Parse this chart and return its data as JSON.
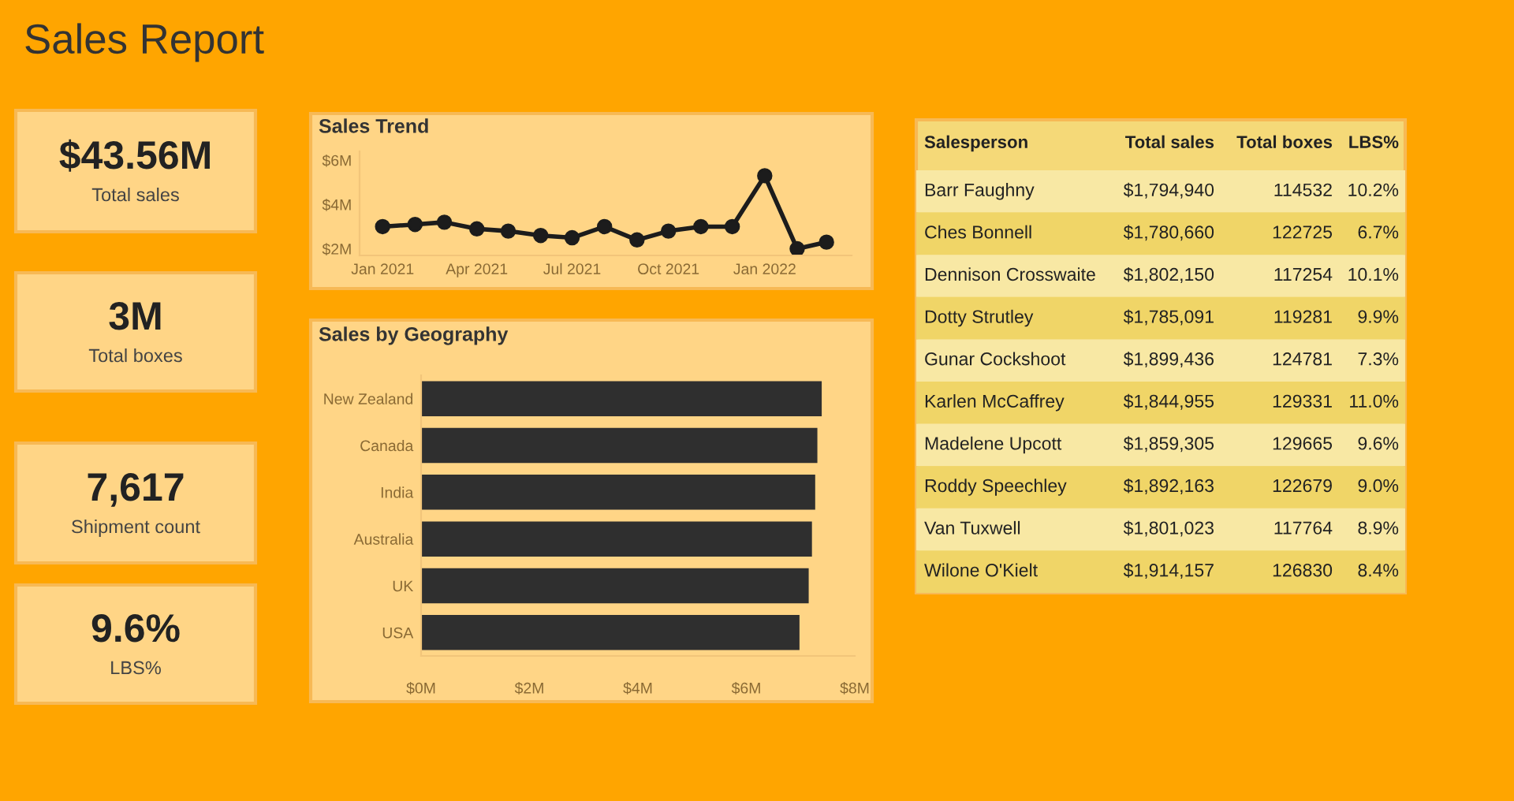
{
  "chart_data": [
    {
      "type": "other",
      "title": "Sales Report",
      "annotations": [
        "$43.56M",
        "Total sales",
        "3M",
        "Total boxes",
        "7,617",
        "Shipment count",
        "9.6%",
        "LBS%"
      ]
    },
    {
      "type": "line",
      "title": "Sales Trend",
      "x": [
        "2021-01",
        "2021-02",
        "2021-03",
        "2021-04",
        "2021-05",
        "2021-06",
        "2021-07",
        "2021-08",
        "2021-09",
        "2021-10",
        "2021-11",
        "2021-12",
        "2022-01",
        "2022-02",
        "2022-03"
      ],
      "series": [
        {
          "color": "#1c1c1c",
          "values": [
            3.0,
            3.1,
            3.2,
            2.9,
            2.8,
            2.6,
            2.5,
            3.0,
            2.4,
            2.8,
            3.0,
            3.0,
            5.3,
            2.0,
            2.3
          ]
        }
      ],
      "marker": "circle",
      "line_style": "solid",
      "xlim": [
        "2020-12-10",
        "2022-03-25"
      ],
      "xticks": [
        {
          "value": "2021-01",
          "label": "Jan 2021"
        },
        {
          "value": "2021-04",
          "label": "Apr 2021"
        },
        {
          "value": "2021-07",
          "label": "Jul 2021"
        },
        {
          "value": "2021-10",
          "label": "Oct 2021"
        },
        {
          "value": "2022-01",
          "label": "Jan 2022"
        }
      ],
      "ylim": [
        1.7,
        6.4
      ],
      "yticks": [
        {
          "value": 2,
          "label": "$2M"
        },
        {
          "value": 4,
          "label": "$4M"
        },
        {
          "value": 6,
          "label": "$6M"
        }
      ]
    },
    {
      "type": "bar",
      "title": "Sales by Geography",
      "orientation": "horizontal",
      "categories": [
        "New Zealand",
        "Canada",
        "India",
        "Australia",
        "UK",
        "USA"
      ],
      "values": [
        7.39,
        7.31,
        7.27,
        7.21,
        7.15,
        6.98
      ],
      "color": "#2f2f2f",
      "xlim": [
        0,
        8
      ],
      "xticks": [
        {
          "value": 0,
          "label": "$0M"
        },
        {
          "value": 2,
          "label": "$2M"
        },
        {
          "value": 4,
          "label": "$4M"
        },
        {
          "value": 6,
          "label": "$6M"
        },
        {
          "value": 8,
          "label": "$8M"
        }
      ]
    },
    {
      "type": "other",
      "categories": [
        "Salesperson",
        "Total sales",
        "Total boxes",
        "LBS%"
      ],
      "annotations": [
        "Barr Faughny",
        "$1,794,940",
        "114532",
        "10.2%",
        "Ches Bonnell",
        "$1,780,660",
        "122725",
        "6.7%",
        "Dennison Crosswaite",
        "$1,802,150",
        "117254",
        "10.1%",
        "Dotty Strutley",
        "$1,785,091",
        "119281",
        "9.9%",
        "Gunar Cockshoot",
        "$1,899,436",
        "124781",
        "7.3%",
        "Karlen McCaffrey",
        "$1,844,955",
        "129331",
        "11.0%",
        "Madelene Upcott",
        "$1,859,305",
        "129665",
        "9.6%",
        "Roddy Speechley",
        "$1,892,163",
        "122679",
        "9.0%",
        "Van Tuxwell",
        "$1,801,023",
        "117764",
        "8.9%",
        "Wilone O'Kielt",
        "$1,914,157",
        "126830",
        "8.4%"
      ]
    }
  ]
}
